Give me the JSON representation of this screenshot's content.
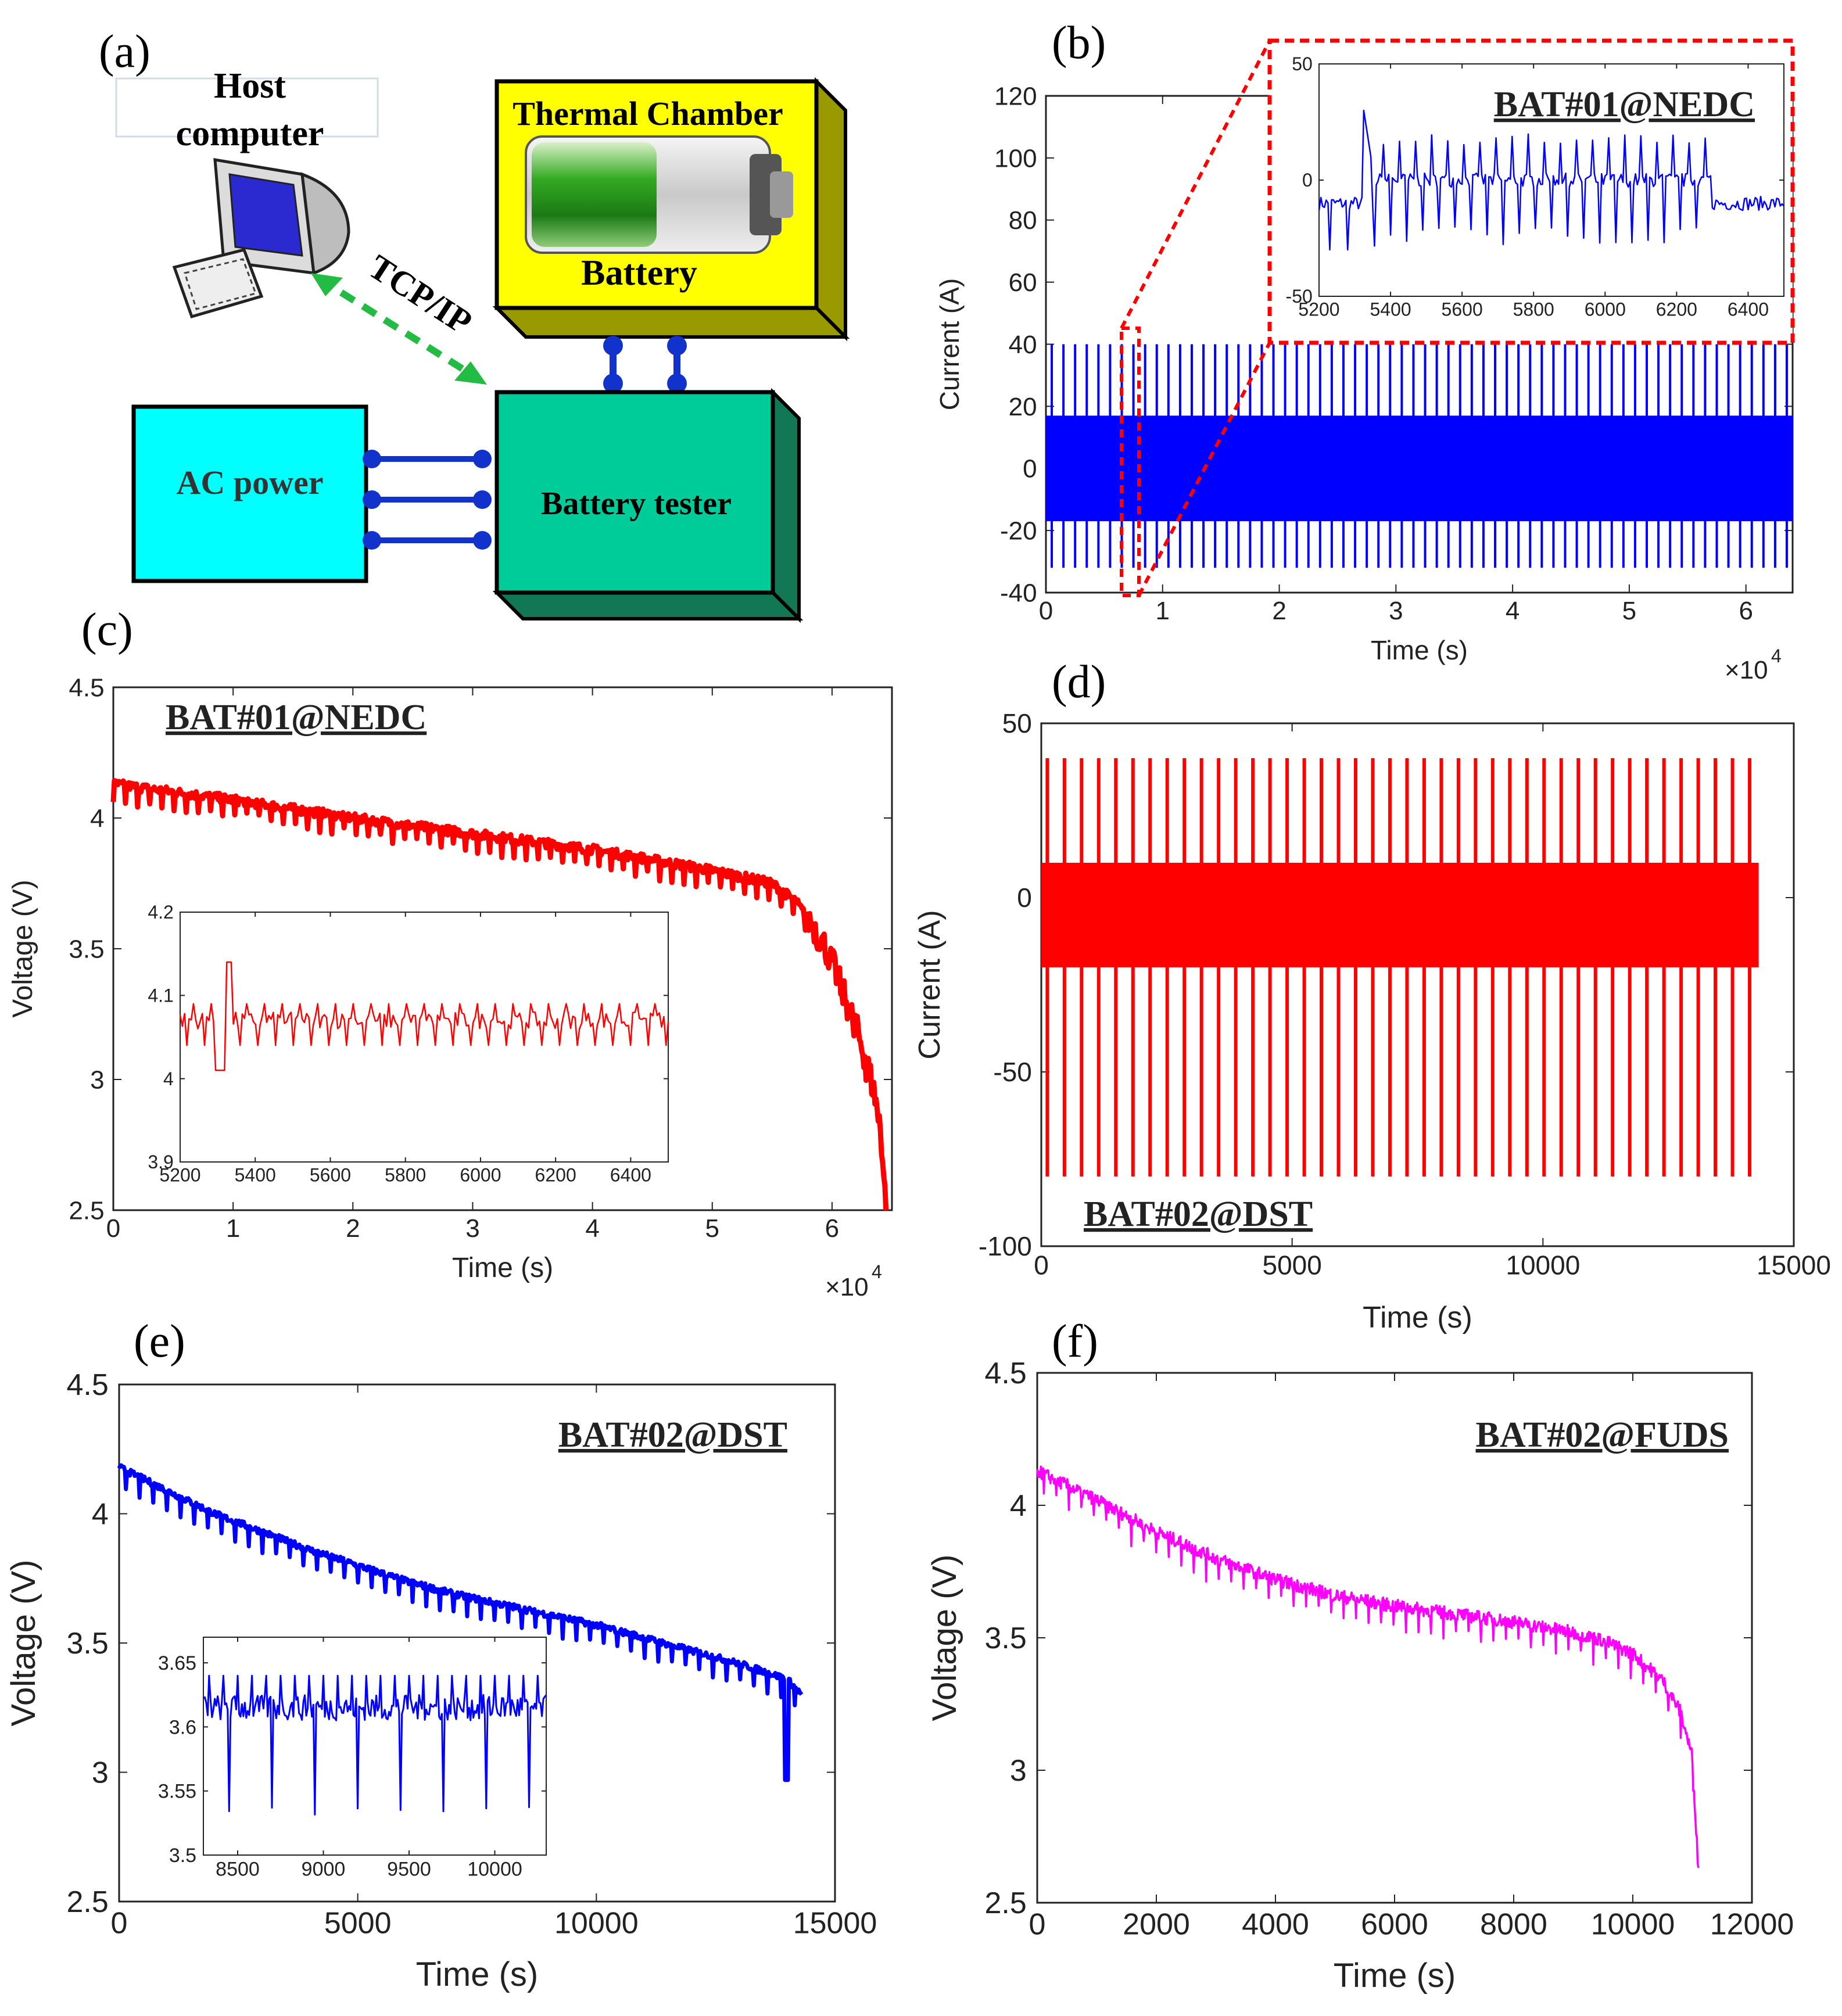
{
  "panels": {
    "a": {
      "label": "(a)",
      "host_computer": [
        "Host",
        "computer"
      ],
      "tcpip": "TCP/IP",
      "thermal_chamber": "Thermal Chamber",
      "battery": "Battery",
      "ac_power": "AC power",
      "battery_tester": "Battery tester"
    }
  },
  "colors": {
    "blue": "#0000ff",
    "red": "#ff0000",
    "magenta": "#ff00ff",
    "cyan": "#00ffff",
    "yellow": "#ffff00",
    "teal": "#00cc99",
    "olive": "#999900",
    "green_dash": "#22bb44",
    "link": "#1133cc"
  },
  "chart_data": [
    {
      "id": "b",
      "panel_label": "(b)",
      "type": "line",
      "title": "",
      "annotation": "",
      "xlabel": "Time (s)",
      "ylabel": "Current (A)",
      "exponent": "×10",
      "xlim": [
        0,
        6.4
      ],
      "ylim": [
        -40,
        120
      ],
      "xticks": [
        "0",
        "1",
        "2",
        "3",
        "4",
        "5",
        "6"
      ],
      "yticks": [
        "-40",
        "-20",
        "0",
        "20",
        "40",
        "60",
        "80",
        "100",
        "120"
      ],
      "series": [
        {
          "name": "Current",
          "color": "#0000ff",
          "pattern": "NEDC current, dense band -17 to 17 A with 64 spikes to 40 A and -32 A"
        }
      ]
    },
    {
      "id": "b_inset",
      "type": "line",
      "annotation": "BAT#01@NEDC",
      "xlim": [
        5200,
        6500
      ],
      "ylim": [
        -50,
        50
      ],
      "xticks": [
        "5200",
        "5400",
        "5600",
        "5800",
        "6000",
        "6200",
        "6400"
      ],
      "yticks": [
        "-50",
        "0",
        "50"
      ],
      "series": [
        {
          "name": "Current",
          "color": "#0000ff"
        }
      ]
    },
    {
      "id": "c",
      "panel_label": "(c)",
      "type": "line",
      "annotation": "BAT#01@NEDC",
      "xlabel": "Time (s)",
      "ylabel": "Voltage (V)",
      "exponent": "×10",
      "xlim": [
        0,
        6.5
      ],
      "ylim": [
        2.5,
        4.5
      ],
      "xticks": [
        "0",
        "1",
        "2",
        "3",
        "4",
        "5",
        "6"
      ],
      "yticks": [
        "2.5",
        "3",
        "3.5",
        "4",
        "4.5"
      ],
      "series": [
        {
          "name": "Voltage",
          "color": "#ff0000",
          "x": [
            0,
            1,
            2,
            3,
            4,
            5,
            5.5,
            5.7,
            5.9,
            6.0,
            6.1,
            6.2,
            6.3,
            6.4,
            6.45
          ],
          "y": [
            4.13,
            4.07,
            4.0,
            3.94,
            3.88,
            3.8,
            3.75,
            3.68,
            3.55,
            3.45,
            3.32,
            3.2,
            3.05,
            2.85,
            2.5
          ]
        }
      ]
    },
    {
      "id": "c_inset",
      "type": "line",
      "xlim": [
        5200,
        6500
      ],
      "ylim": [
        3.9,
        4.2
      ],
      "xticks": [
        "5200",
        "5400",
        "5600",
        "5800",
        "6000",
        "6200",
        "6400"
      ],
      "yticks": [
        "3.9",
        "4",
        "4.1",
        "4.2"
      ],
      "series": [
        {
          "name": "Voltage",
          "color": "#ff0000"
        }
      ]
    },
    {
      "id": "d",
      "panel_label": "(d)",
      "type": "line",
      "annotation": "BAT#02@DST",
      "xlabel": "Time (s)",
      "ylabel": "Current (A)",
      "xlim": [
        0,
        15000
      ],
      "ylim": [
        -100,
        50
      ],
      "xticks": [
        "0",
        "5000",
        "10000",
        "15000"
      ],
      "yticks": [
        "-100",
        "-50",
        "0",
        "50"
      ],
      "series": [
        {
          "name": "Current",
          "color": "#ff0000",
          "pattern": "DST current, band -20 to 10 A with 42 spikes to 40 A and -80 A"
        }
      ]
    },
    {
      "id": "e",
      "panel_label": "(e)",
      "type": "line",
      "annotation": "BAT#02@DST",
      "xlabel": "Time (s)",
      "ylabel": "Voltage (V)",
      "xlim": [
        0,
        15000
      ],
      "ylim": [
        2.5,
        4.5
      ],
      "xticks": [
        "0",
        "5000",
        "10000",
        "15000"
      ],
      "yticks": [
        "2.5",
        "3",
        "3.5",
        "4",
        "4.5"
      ],
      "series": [
        {
          "name": "Voltage",
          "color": "#0000ff",
          "x": [
            0,
            1000,
            2000,
            3000,
            4000,
            5000,
            6000,
            7000,
            8000,
            9000,
            10000,
            11000,
            12000,
            13000,
            14000,
            14300
          ],
          "y": [
            4.18,
            4.09,
            4.0,
            3.93,
            3.86,
            3.8,
            3.74,
            3.69,
            3.65,
            3.61,
            3.57,
            3.52,
            3.47,
            3.42,
            3.36,
            3.3
          ]
        }
      ]
    },
    {
      "id": "e_inset",
      "type": "line",
      "xlim": [
        8300,
        10300
      ],
      "ylim": [
        3.5,
        3.67
      ],
      "xticks": [
        "8500",
        "9000",
        "9500",
        "10000"
      ],
      "yticks": [
        "3.5",
        "3.55",
        "3.6",
        "3.65"
      ],
      "series": [
        {
          "name": "Voltage",
          "color": "#0000ff"
        }
      ]
    },
    {
      "id": "f",
      "panel_label": "(f)",
      "type": "line",
      "annotation": "BAT#02@FUDS",
      "xlabel": "Time (s)",
      "ylabel": "Voltage (V)",
      "xlim": [
        0,
        12000
      ],
      "ylim": [
        2.5,
        4.5
      ],
      "xticks": [
        "0",
        "2000",
        "4000",
        "6000",
        "8000",
        "10000",
        "12000"
      ],
      "yticks": [
        "2.5",
        "3",
        "3.5",
        "4",
        "4.5"
      ],
      "series": [
        {
          "name": "Voltage",
          "color": "#ff00ff",
          "x": [
            0,
            1000,
            2000,
            3000,
            4000,
            5000,
            6000,
            7000,
            8000,
            9000,
            9500,
            10000,
            10500,
            10800,
            11000,
            11100
          ],
          "y": [
            4.13,
            4.02,
            3.9,
            3.8,
            3.72,
            3.66,
            3.62,
            3.59,
            3.56,
            3.52,
            3.49,
            3.44,
            3.34,
            3.22,
            3.05,
            2.62
          ]
        }
      ]
    }
  ]
}
